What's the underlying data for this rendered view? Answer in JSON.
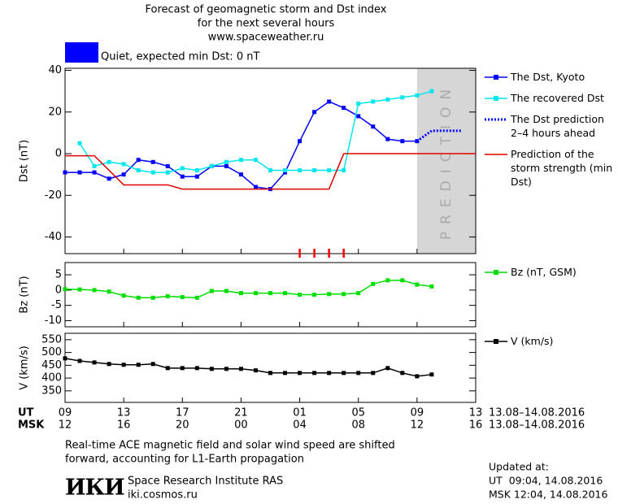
{
  "header": {
    "title_lines": [
      "Forecast of geomagnetic storm and Dst index",
      "for the next several hours",
      "www.spaceweather.ru"
    ],
    "status": "Quiet, expected min Dst: 0 nT",
    "status_color": "#0000ff"
  },
  "chart_data": [
    {
      "type": "line",
      "ylabel": "Dst (nT)",
      "xlim": [
        0,
        28
      ],
      "ylim": [
        -48,
        41
      ],
      "yticks": [
        40,
        20,
        0,
        -20,
        -40
      ],
      "prediction_region": [
        24,
        28
      ],
      "prediction_label": "PREDICTION",
      "storm_marks": {
        "color": "#ff0000",
        "x": [
          16,
          17,
          18,
          19
        ]
      },
      "series": [
        {
          "name": "The Dst, Kyoto",
          "color": "#0000ff",
          "markers": true,
          "style": "solid",
          "x": [
            0,
            1,
            2,
            3,
            4,
            5,
            6,
            7,
            8,
            9,
            10,
            11,
            12,
            13,
            14,
            15,
            16,
            17,
            18,
            19,
            20,
            21,
            22,
            23,
            24
          ],
          "values": [
            -9,
            -9,
            -9,
            -12,
            -10,
            -3,
            -4,
            -6,
            -11,
            -11,
            -6,
            -6,
            -10,
            -16,
            -17,
            -9,
            6,
            20,
            25,
            22,
            18,
            13,
            7,
            6,
            6
          ]
        },
        {
          "name": "The recovered Dst",
          "color": "#00e5ee",
          "markers": true,
          "style": "solid",
          "x": [
            1,
            2,
            3,
            4,
            5,
            6,
            7,
            8,
            9,
            10,
            11,
            12,
            13,
            14,
            15,
            16,
            17,
            18,
            19,
            20,
            21,
            22,
            23,
            24,
            25
          ],
          "values": [
            5,
            -6,
            -4,
            -5,
            -8,
            -9,
            -9,
            -7,
            -8,
            -6,
            -4,
            -3,
            -3,
            -8,
            -8,
            -8,
            -8,
            -8,
            -8,
            24,
            25,
            26,
            27,
            28,
            30
          ]
        },
        {
          "name": "The Dst prediction 2–4 hours ahead",
          "color": "#0000ff",
          "markers": false,
          "style": "dotted",
          "x": [
            24,
            25,
            27
          ],
          "values": [
            6,
            11,
            11
          ]
        },
        {
          "name": "Prediction of the storm strength (min Dst)",
          "color": "#e00000",
          "markers": false,
          "style": "solid",
          "x": [
            0,
            2,
            4,
            7,
            8,
            18,
            19,
            28
          ],
          "values": [
            -1,
            -1,
            -15,
            -15,
            -17,
            -17,
            0,
            0
          ]
        }
      ]
    },
    {
      "type": "line",
      "ylabel": "Bz (nT)",
      "xlim": [
        0,
        28
      ],
      "ylim": [
        -12,
        9
      ],
      "yticks": [
        5,
        0,
        -5,
        -10
      ],
      "series": [
        {
          "name": "Bz (nT, GSM)",
          "color": "#00dd00",
          "markers": true,
          "style": "solid",
          "x": [
            0,
            1,
            2,
            3,
            4,
            5,
            6,
            7,
            8,
            9,
            10,
            11,
            12,
            13,
            14,
            15,
            16,
            17,
            18,
            19,
            20,
            21,
            22,
            23,
            24,
            25
          ],
          "values": [
            0.3,
            0.2,
            0,
            -0.5,
            -1.8,
            -2.5,
            -2.5,
            -2,
            -2.3,
            -2.5,
            -0.3,
            -0.3,
            -1,
            -1,
            -1,
            -1,
            -1.5,
            -1.5,
            -1.3,
            -1.3,
            -1,
            2,
            3.2,
            3.2,
            1.8,
            1.2
          ]
        }
      ]
    },
    {
      "type": "line",
      "ylabel": "V (km/s)",
      "xlim": [
        0,
        28
      ],
      "ylim": [
        305,
        575
      ],
      "yticks": [
        550,
        500,
        450,
        400,
        350
      ],
      "xlabel": "UT",
      "x2label": "MSK",
      "date_range": "13.08–14.08.2016",
      "xticks": [
        {
          "value": 0,
          "label": "09"
        },
        {
          "value": 4,
          "label": "13"
        },
        {
          "value": 8,
          "label": "17"
        },
        {
          "value": 12,
          "label": "21"
        },
        {
          "value": 16,
          "label": "01"
        },
        {
          "value": 20,
          "label": "05"
        },
        {
          "value": 24,
          "label": "09"
        },
        {
          "value": 28,
          "label": "13"
        }
      ],
      "x2ticks": [
        {
          "value": 0,
          "label": "12"
        },
        {
          "value": 4,
          "label": "16"
        },
        {
          "value": 8,
          "label": "20"
        },
        {
          "value": 12,
          "label": "00"
        },
        {
          "value": 16,
          "label": "04"
        },
        {
          "value": 20,
          "label": "08"
        },
        {
          "value": 24,
          "label": "12"
        },
        {
          "value": 28,
          "label": "16"
        }
      ],
      "series": [
        {
          "name": "V (km/s)",
          "color": "#000000",
          "markers": true,
          "style": "solid",
          "x": [
            0,
            1,
            2,
            3,
            4,
            5,
            6,
            7,
            8,
            9,
            10,
            11,
            12,
            13,
            14,
            15,
            16,
            17,
            18,
            19,
            20,
            21,
            22,
            23,
            24,
            25
          ],
          "values": [
            477,
            467,
            461,
            455,
            452,
            452,
            455,
            439,
            439,
            439,
            436,
            436,
            436,
            430,
            420,
            420,
            420,
            420,
            420,
            420,
            420,
            420,
            439,
            420,
            407,
            414
          ]
        }
      ]
    }
  ],
  "footer": {
    "note_lines": [
      "Real-time ACE magnetic field and solar wind speed are shifted",
      "forward, accounting for L1-Earth propagation"
    ],
    "logo": "ИКИ",
    "institute": "Space Research Institute RAS",
    "website": "iki.cosmos.ru",
    "updated_lines": [
      "Updated at:",
      "UT  09:04, 14.08.2016",
      "MSK 12:04, 14.08.2016"
    ]
  }
}
